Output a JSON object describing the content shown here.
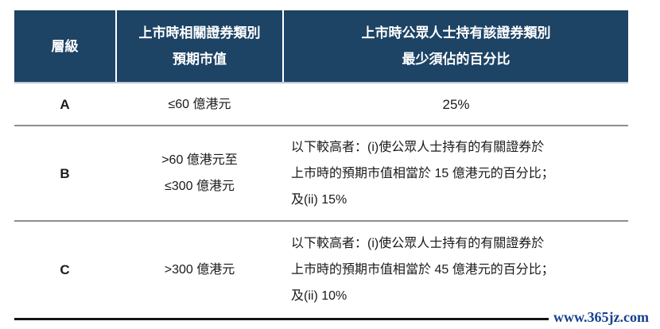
{
  "colors": {
    "header_bg": "#1d4365",
    "header_text": "#ffffff",
    "divider": "#8d8d8d",
    "header_edge": "#bcc3d2",
    "bottom_border": "#141414",
    "body_text": "#1a1a1a",
    "watermark_text": "#16408f"
  },
  "header": {
    "col_tier": [
      "層級"
    ],
    "col_cap": [
      "上市時相關證券類別",
      "預期市值"
    ],
    "col_pct": [
      "上市時公眾人士持有該證券類別",
      "最少須佔的百分比"
    ]
  },
  "rows": [
    {
      "tier": "A",
      "cap": [
        "≤60 億港元"
      ],
      "pct": [
        "25%"
      ]
    },
    {
      "tier": "B",
      "cap": [
        ">60 億港元至",
        "≤300 億港元"
      ],
      "pct": [
        "以下較高者：(i)使公眾人士持有的有關證券於",
        "上市時的預期市值相當於 15 億港元的百分比；",
        "及(ii) 15%"
      ]
    },
    {
      "tier": "C",
      "cap": [
        ">300 億港元"
      ],
      "pct": [
        "以下較高者：(i)使公眾人士持有的有關證券於",
        "上市時的預期市值相當於 45 億港元的百分比；",
        "及(ii) 10%"
      ]
    }
  ],
  "watermark": {
    "text": "www.365jz.com"
  }
}
